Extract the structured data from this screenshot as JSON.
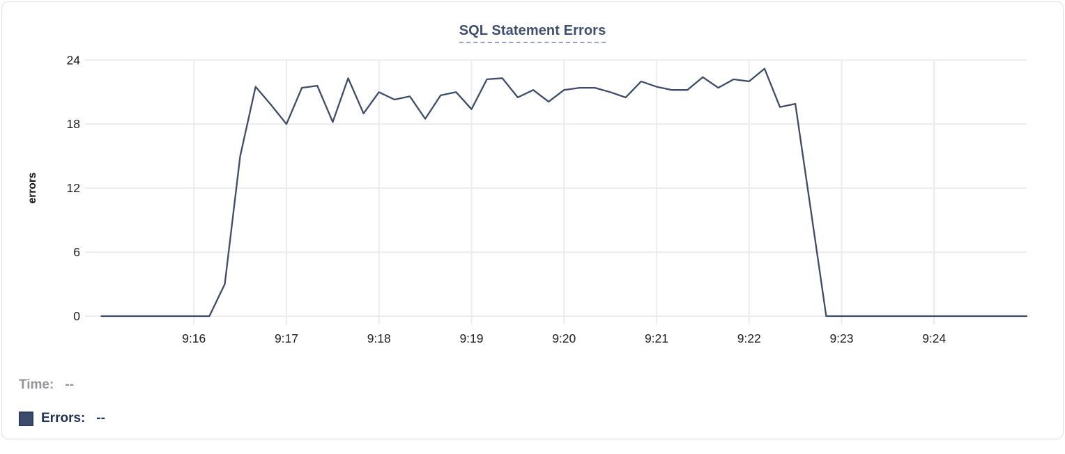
{
  "chart": {
    "title_tooltip_hint": "SQL Statement Errors"
  },
  "legend": {
    "time_label": "Time:",
    "time_value": "--",
    "errors_label": "Errors:",
    "errors_value": "--"
  },
  "colors": {
    "line": "#3d4b6c",
    "title": "#3f4f70",
    "title_underline": "#97a1bf",
    "grid": "#ececee",
    "tick_text": "#1d1d1f",
    "axis_label_text": "#111111",
    "legend_time_text": "#94949a",
    "legend_errors_text": "#20325a",
    "swatch_fill": "#3d4b6c",
    "card_border": "#e1e2e6"
  },
  "chart_data": {
    "type": "line",
    "title": "SQL Statement Errors",
    "xlabel": "",
    "ylabel": "errors",
    "ylim": [
      0,
      24
    ],
    "yticks": [
      0,
      6,
      12,
      18,
      24
    ],
    "grid": true,
    "legend_position": "bottom-left",
    "x_tick_labels": [
      "9:16",
      "9:17",
      "9:18",
      "9:19",
      "9:20",
      "9:21",
      "9:22",
      "9:23",
      "9:24"
    ],
    "x_tick_seconds": [
      60,
      120,
      180,
      240,
      300,
      360,
      420,
      480,
      540
    ],
    "x_domain_seconds": [
      -7,
      600
    ],
    "dt_seconds": 10,
    "series_name": "Errors",
    "times": [
      "9:15:00",
      "9:15:10",
      "9:15:20",
      "9:15:30",
      "9:15:40",
      "9:15:50",
      "9:16:00",
      "9:16:10",
      "9:16:20",
      "9:16:30",
      "9:16:40",
      "9:16:50",
      "9:17:00",
      "9:17:10",
      "9:17:20",
      "9:17:30",
      "9:17:40",
      "9:17:50",
      "9:18:00",
      "9:18:10",
      "9:18:20",
      "9:18:30",
      "9:18:40",
      "9:18:50",
      "9:19:00",
      "9:19:10",
      "9:19:20",
      "9:19:30",
      "9:19:40",
      "9:19:50",
      "9:20:00",
      "9:20:10",
      "9:20:20",
      "9:20:30",
      "9:20:40",
      "9:20:50",
      "9:21:00",
      "9:21:10",
      "9:21:20",
      "9:21:30",
      "9:21:40",
      "9:21:50",
      "9:22:00",
      "9:22:10",
      "9:22:20",
      "9:22:30",
      "9:22:40",
      "9:22:50",
      "9:23:00",
      "9:23:10",
      "9:23:20",
      "9:23:30",
      "9:23:40",
      "9:23:50",
      "9:24:00",
      "9:24:10",
      "9:24:20",
      "9:24:30",
      "9:24:40",
      "9:24:50",
      "9:25:00"
    ],
    "values": [
      0,
      0,
      0,
      0,
      0,
      0,
      0,
      0,
      3,
      15,
      21.5,
      19.8,
      18,
      21.4,
      21.6,
      18.2,
      22.3,
      19,
      21,
      20.3,
      20.6,
      18.5,
      20.7,
      21,
      19.4,
      22.2,
      22.3,
      20.5,
      21.2,
      20.1,
      21.2,
      21.4,
      21.4,
      21,
      20.5,
      22,
      21.5,
      21.2,
      21.2,
      22.4,
      21.4,
      22.2,
      22,
      23.2,
      19.6,
      19.9,
      10,
      0,
      0,
      0,
      0,
      0,
      0,
      0,
      0,
      0,
      0,
      0,
      0,
      0,
      0
    ]
  }
}
